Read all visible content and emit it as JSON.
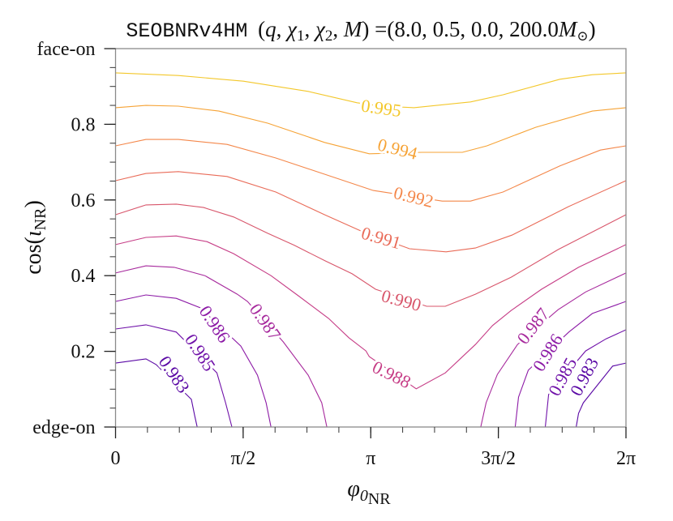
{
  "chart_data": {
    "type": "contour",
    "title": {
      "model": "SEOBNRv4HM",
      "params": [
        "(",
        "q",
        ", ",
        "χ",
        "1",
        ", ",
        "χ",
        "2",
        ", ",
        "M",
        ") =(8.0, 0.5, 0.0, 200.0",
        "M",
        "⊙",
        ")"
      ]
    },
    "xlabel": {
      "symbol": "φ",
      "sub1": "0",
      "sub2": "NR"
    },
    "ylabel": {
      "pre": "cos(",
      "symbol": "ι",
      "sub": "NR",
      "post": ")"
    },
    "xlim": [
      0,
      2
    ],
    "xunit": "pi",
    "ylim": [
      0,
      1
    ],
    "x_ticks": [
      {
        "value": 0,
        "label": "0"
      },
      {
        "value": 0.5,
        "label": "π/2"
      },
      {
        "value": 1,
        "label": "π"
      },
      {
        "value": 1.5,
        "label": "3π/2"
      },
      {
        "value": 2,
        "label": "2π"
      }
    ],
    "x_minor_step": 0.125,
    "y_ticks": [
      {
        "value": 0,
        "label": "edge-on"
      },
      {
        "value": 0.2,
        "label": "0.2"
      },
      {
        "value": 0.4,
        "label": "0.4"
      },
      {
        "value": 0.6,
        "label": "0.6"
      },
      {
        "value": 0.8,
        "label": "0.8"
      },
      {
        "value": 1.0,
        "label": "face-on"
      }
    ],
    "y_minor_step": 0.05,
    "grid": false,
    "colormap": "plasma",
    "contours": [
      {
        "level": "0.995",
        "color": "#f3c72a",
        "paths": [
          [
            [
              0,
              0.936
            ],
            [
              0.246,
              0.929
            ],
            [
              0.501,
              0.914
            ],
            [
              0.755,
              0.887
            ],
            [
              0.946,
              0.857
            ],
            [
              1.041,
              0.848
            ],
            [
              1.169,
              0.844
            ],
            [
              1.391,
              0.859
            ],
            [
              1.518,
              0.878
            ],
            [
              1.741,
              0.919
            ],
            [
              1.868,
              0.931
            ],
            [
              2,
              0.936
            ]
          ]
        ],
        "labels": [
          [
            1.041,
            0.843
          ]
        ]
      },
      {
        "level": "0.994",
        "color": "#f6a336",
        "paths": [
          [
            [
              0,
              0.844
            ],
            [
              0.119,
              0.85
            ],
            [
              0.246,
              0.848
            ],
            [
              0.405,
              0.835
            ],
            [
              0.596,
              0.803
            ],
            [
              0.819,
              0.752
            ],
            [
              0.994,
              0.722
            ],
            [
              1.2,
              0.726
            ],
            [
              1.359,
              0.726
            ],
            [
              1.455,
              0.743
            ],
            [
              1.646,
              0.792
            ],
            [
              1.868,
              0.835
            ],
            [
              2,
              0.844
            ]
          ]
        ],
        "labels": [
          [
            1.105,
            0.735
          ]
        ]
      },
      {
        "level": "0.992",
        "color": "#f4874a",
        "paths": [
          [
            [
              0,
              0.743
            ],
            [
              0.119,
              0.76
            ],
            [
              0.246,
              0.76
            ],
            [
              0.437,
              0.747
            ],
            [
              0.628,
              0.711
            ],
            [
              0.819,
              0.668
            ],
            [
              1.01,
              0.625
            ],
            [
              1.28,
              0.597
            ],
            [
              1.391,
              0.597
            ],
            [
              1.518,
              0.621
            ],
            [
              1.741,
              0.69
            ],
            [
              1.9,
              0.732
            ],
            [
              2,
              0.743
            ]
          ]
        ],
        "labels": [
          [
            1.168,
            0.608
          ]
        ]
      },
      {
        "level": "0.991",
        "color": "#e96b58",
        "paths": [
          [
            [
              0,
              0.651
            ],
            [
              0.119,
              0.67
            ],
            [
              0.246,
              0.675
            ],
            [
              0.437,
              0.662
            ],
            [
              0.628,
              0.621
            ],
            [
              0.819,
              0.561
            ],
            [
              0.962,
              0.518
            ],
            [
              1.152,
              0.471
            ],
            [
              1.295,
              0.463
            ],
            [
              1.41,
              0.473
            ],
            [
              1.553,
              0.507
            ],
            [
              1.773,
              0.582
            ],
            [
              2,
              0.651
            ]
          ]
        ],
        "labels": [
          [
            1.041,
            0.5
          ]
        ]
      },
      {
        "level": "0.990",
        "color": "#d8566b",
        "paths": [
          [
            [
              0,
              0.561
            ],
            [
              0.119,
              0.587
            ],
            [
              0.238,
              0.589
            ],
            [
              0.345,
              0.58
            ],
            [
              0.463,
              0.555
            ],
            [
              0.596,
              0.512
            ],
            [
              0.701,
              0.48
            ],
            [
              0.822,
              0.439
            ],
            [
              0.927,
              0.405
            ],
            [
              1.019,
              0.364
            ],
            [
              1.219,
              0.319
            ],
            [
              1.292,
              0.319
            ],
            [
              1.41,
              0.351
            ],
            [
              1.55,
              0.396
            ],
            [
              1.734,
              0.469
            ],
            [
              2,
              0.561
            ]
          ]
        ],
        "labels": [
          [
            1.12,
            0.335
          ]
        ]
      },
      {
        "level": "0.988",
        "color": "#c63d86",
        "paths": [
          [
            [
              0,
              0.482
            ],
            [
              0.119,
              0.501
            ],
            [
              0.238,
              0.505
            ],
            [
              0.358,
              0.49
            ],
            [
              0.463,
              0.458
            ],
            [
              0.609,
              0.4
            ],
            [
              0.716,
              0.347
            ],
            [
              0.835,
              0.287
            ],
            [
              0.914,
              0.236
            ],
            [
              0.981,
              0.201
            ],
            [
              0.994,
              0.186
            ],
            [
              1.178,
              0.101
            ],
            [
              1.292,
              0.143
            ],
            [
              1.41,
              0.218
            ],
            [
              1.477,
              0.268
            ],
            [
              1.55,
              0.308
            ],
            [
              1.669,
              0.364
            ],
            [
              1.814,
              0.422
            ],
            [
              2,
              0.482
            ]
          ]
        ],
        "labels": [
          [
            1.082,
            0.139
          ]
        ]
      },
      {
        "level": "0.987",
        "color": "#a72a9d",
        "paths": [
          [
            [
              0,
              0.407
            ],
            [
              0.119,
              0.426
            ],
            [
              0.23,
              0.422
            ],
            [
              0.35,
              0.4
            ],
            [
              0.477,
              0.351
            ],
            [
              0.517,
              0.332
            ],
            [
              0.657,
              0.225
            ],
            [
              0.755,
              0.137
            ],
            [
              0.808,
              0.064
            ],
            [
              0.828,
              0
            ]
          ],
          [
            [
              1.431,
              0
            ],
            [
              1.452,
              0.064
            ],
            [
              1.496,
              0.139
            ],
            [
              1.575,
              0.218
            ],
            [
              1.734,
              0.31
            ],
            [
              1.842,
              0.357
            ],
            [
              2,
              0.407
            ]
          ]
        ],
        "labels": [
          [
            0.587,
            0.278
          ],
          [
            1.636,
            0.267
          ]
        ]
      },
      {
        "level": "0.986",
        "color": "#8c1aa6",
        "paths": [
          [
            [
              0,
              0.332
            ],
            [
              0.119,
              0.349
            ],
            [
              0.238,
              0.34
            ],
            [
              0.332,
              0.315
            ],
            [
              0.491,
              0.214
            ],
            [
              0.556,
              0.137
            ],
            [
              0.59,
              0.064
            ],
            [
              0.609,
              0
            ]
          ],
          [
            [
              1.566,
              0
            ],
            [
              1.579,
              0.079
            ],
            [
              1.617,
              0.15
            ],
            [
              1.776,
              0.251
            ],
            [
              1.868,
              0.3
            ],
            [
              2,
              0.332
            ]
          ]
        ],
        "labels": [
          [
            0.389,
            0.272
          ],
          [
            1.693,
            0.197
          ]
        ]
      },
      {
        "level": "0.985",
        "color": "#7012a9",
        "paths": [
          [
            [
              0,
              0.259
            ],
            [
              0.119,
              0.27
            ],
            [
              0.238,
              0.251
            ],
            [
              0.397,
              0.143
            ],
            [
              0.431,
              0.064
            ],
            [
              0.456,
              0
            ]
          ],
          [
            [
              1.684,
              0
            ],
            [
              1.697,
              0.086
            ],
            [
              1.842,
              0.201
            ],
            [
              1.922,
              0.233
            ],
            [
              2,
              0.257
            ]
          ]
        ],
        "labels": [
          [
            0.332,
            0.197
          ],
          [
            1.751,
            0.133
          ]
        ]
      },
      {
        "level": "0.983",
        "color": "#5a08a5",
        "paths": [
          [
            [
              0,
              0.169
            ],
            [
              0.119,
              0.18
            ],
            [
              0.159,
              0.165
            ],
            [
              0.297,
              0.073
            ],
            [
              0.31,
              0.03
            ],
            [
              0.32,
              0
            ]
          ],
          [
            [
              1.805,
              0
            ],
            [
              1.814,
              0.036
            ],
            [
              1.833,
              0.064
            ],
            [
              1.948,
              0.161
            ],
            [
              2,
              0.169
            ]
          ]
        ],
        "labels": [
          [
            0.23,
            0.139
          ],
          [
            1.836,
            0.133
          ]
        ]
      }
    ]
  }
}
